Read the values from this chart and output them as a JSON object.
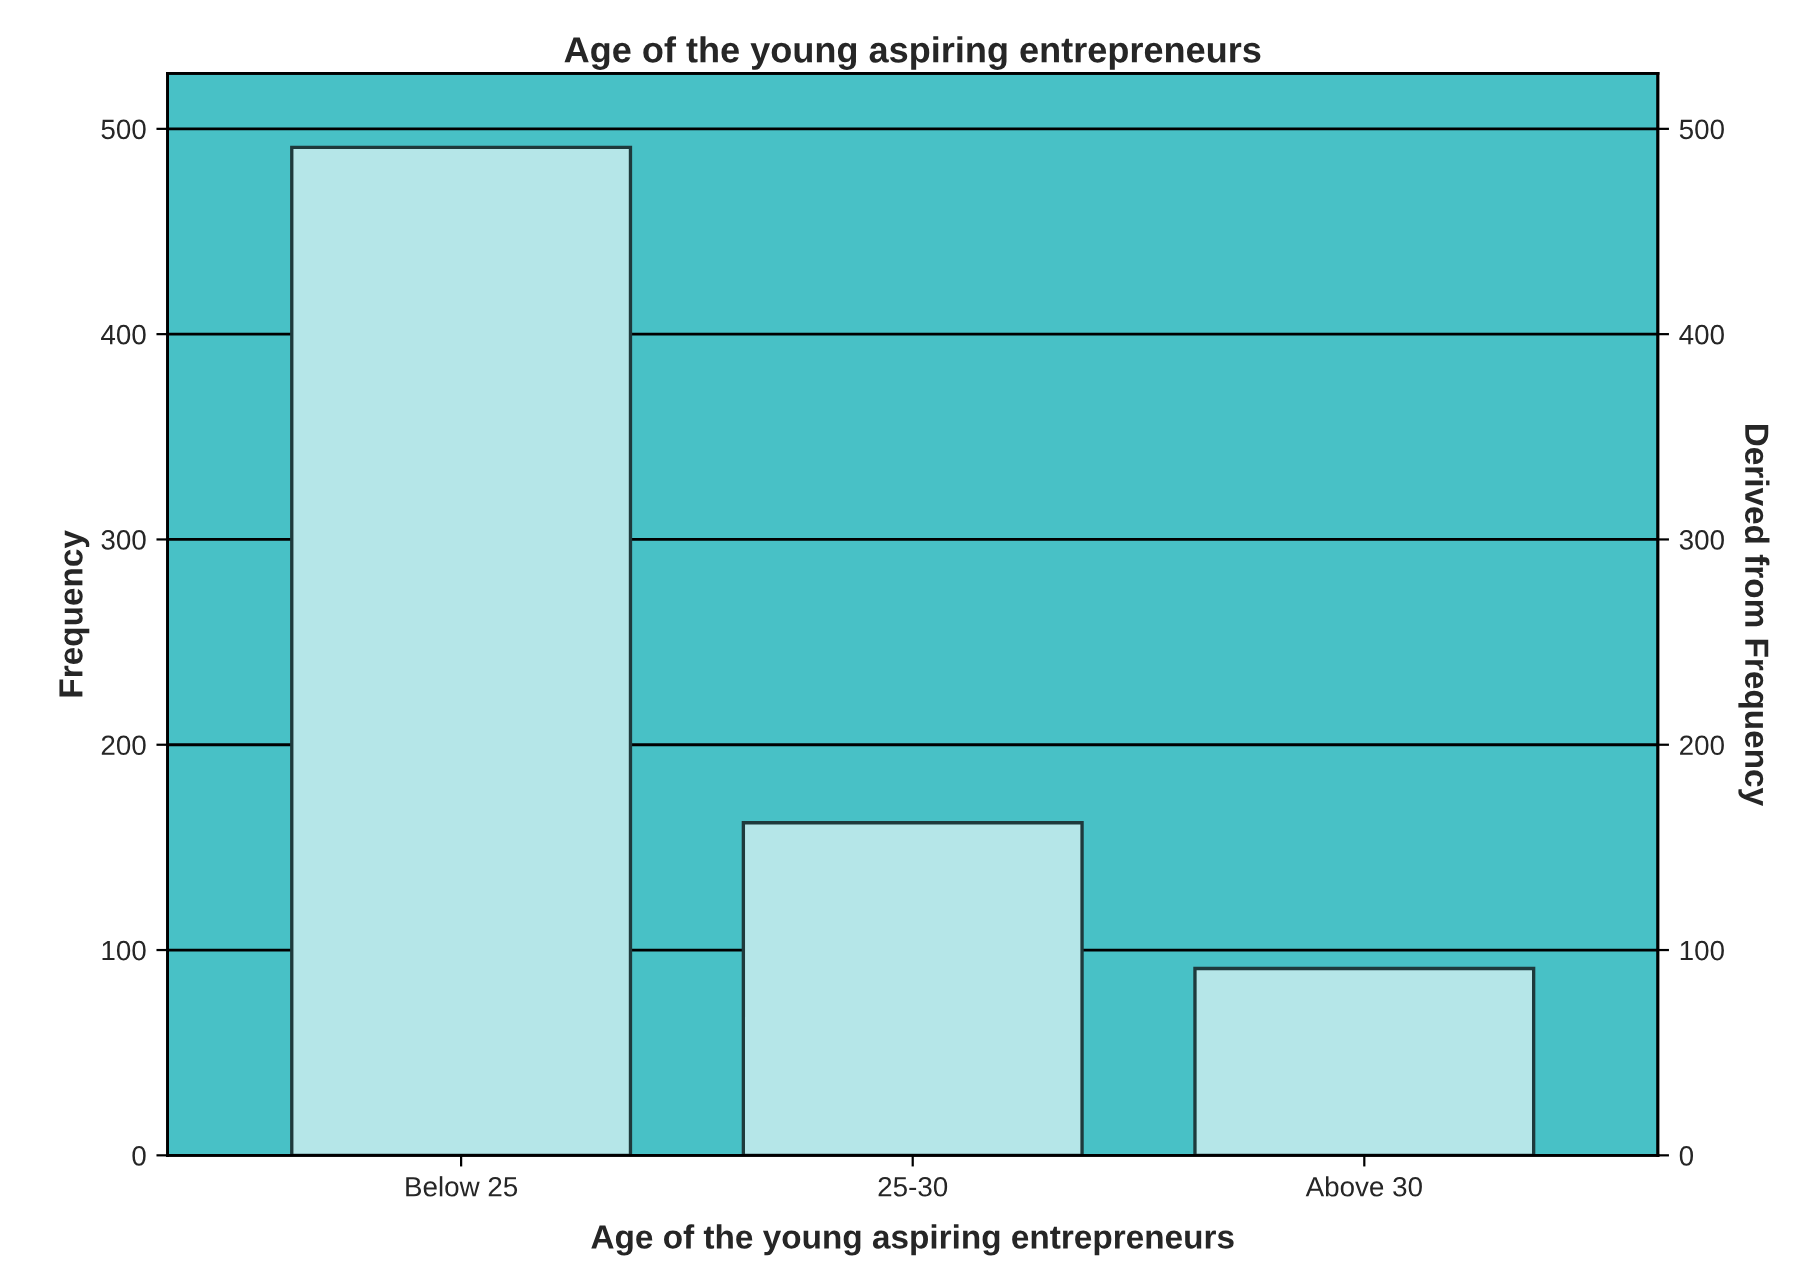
{
  "chart_data": {
    "type": "bar",
    "title": "Age of the young aspiring entrepreneurs",
    "xlabel": "Age of the young aspiring entrepreneurs",
    "ylabel": "Frequency",
    "y2label": "Derived from Frequency",
    "categories": [
      "Below 25",
      "25-30",
      "Above 30"
    ],
    "series": [
      {
        "color": "#b5e6e8",
        "values": [
          491,
          162,
          91
        ]
      }
    ],
    "ylim": [
      0,
      527
    ],
    "yticks": [
      0,
      100,
      200,
      300,
      400,
      500
    ],
    "y2lim": [
      0,
      527
    ],
    "y2ticks": [
      0,
      100,
      200,
      300,
      400,
      500
    ],
    "grid": "y",
    "legend": false
  }
}
